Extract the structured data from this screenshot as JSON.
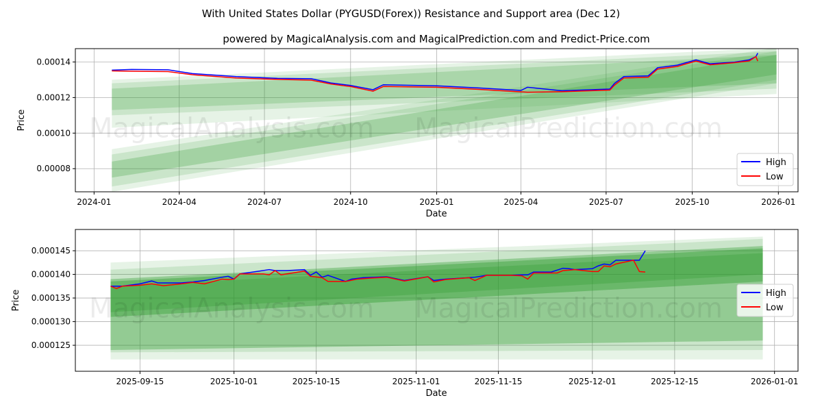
{
  "title": "With United States Dollar (PYGUSD(Forex)) Resistance and Support area (Dec 12)",
  "subtitle": "powered by MagicalAnalysis.com and MagicalPrediction.com and Predict-Price.com",
  "watermarks": [
    "MagicalAnalysis.com",
    "MagicalPrediction.com"
  ],
  "colors": {
    "high": "#0000ff",
    "low": "#ff0000",
    "band": "#2e9a2e"
  },
  "chart_data": [
    {
      "type": "line",
      "xlabel": "Date",
      "ylabel": "Price",
      "xlim": [
        "2023-12-12",
        "2026-01-22"
      ],
      "ylim": [
        6.7e-05,
        0.0001475
      ],
      "xticks": [
        "2024-01",
        "2024-04",
        "2024-07",
        "2024-10",
        "2025-01",
        "2025-04",
        "2025-07",
        "2025-10",
        "2026-01"
      ],
      "xtick_dates": [
        "2024-01-01",
        "2024-04-01",
        "2024-07-01",
        "2024-10-01",
        "2025-01-01",
        "2025-04-01",
        "2025-07-01",
        "2025-10-01",
        "2026-01-01"
      ],
      "yticks": [
        "0.00008",
        "0.00010",
        "0.00012",
        "0.00014"
      ],
      "ytick_values": [
        8e-05,
        0.0001,
        0.00012,
        0.00014
      ],
      "legend": {
        "position": "bottom-right",
        "entries": [
          "High",
          "Low"
        ]
      },
      "band_range": [
        "2024-01-20",
        "2025-12-30"
      ],
      "bands": [
        {
          "start": [
            0.000103,
            0.00013
          ],
          "end": [
            0.000122,
            0.000148
          ],
          "opacity": 0.12
        },
        {
          "start": [
            0.00011,
            0.000128
          ],
          "end": [
            0.000125,
            0.000146
          ],
          "opacity": 0.15
        },
        {
          "start": [
            0.000113,
            0.000125
          ],
          "end": [
            0.000128,
            0.000144
          ],
          "opacity": 0.2
        },
        {
          "start": [
            6.7e-05,
            9.1e-05
          ],
          "end": [
            0.000128,
            0.000148
          ],
          "opacity": 0.12
        },
        {
          "start": [
            7e-05,
            8.8e-05
          ],
          "end": [
            0.00013,
            0.000146
          ],
          "opacity": 0.15
        },
        {
          "start": [
            7.5e-05,
            8.4e-05
          ],
          "end": [
            0.000133,
            0.000144
          ],
          "opacity": 0.25
        }
      ],
      "series": [
        {
          "name": "High",
          "points": [
            [
              "2024-01-20",
              0.0001354
            ],
            [
              "2024-02-10",
              0.0001358
            ],
            [
              "2024-03-20",
              0.0001356
            ],
            [
              "2024-04-15",
              0.0001335
            ],
            [
              "2024-06-01",
              0.0001318
            ],
            [
              "2024-07-15",
              0.0001308
            ],
            [
              "2024-08-20",
              0.0001306
            ],
            [
              "2024-09-10",
              0.0001282
            ],
            [
              "2024-10-01",
              0.0001268
            ],
            [
              "2024-10-25",
              0.0001244
            ],
            [
              "2024-11-05",
              0.0001272
            ],
            [
              "2025-01-01",
              0.0001266
            ],
            [
              "2025-02-15",
              0.0001254
            ],
            [
              "2025-04-01",
              0.000124
            ],
            [
              "2025-04-08",
              0.0001258
            ],
            [
              "2025-05-15",
              0.0001238
            ],
            [
              "2025-07-05",
              0.0001248
            ],
            [
              "2025-07-10",
              0.000128
            ],
            [
              "2025-07-20",
              0.0001318
            ],
            [
              "2025-08-15",
              0.0001322
            ],
            [
              "2025-08-25",
              0.0001368
            ],
            [
              "2025-09-15",
              0.0001382
            ],
            [
              "2025-10-05",
              0.0001412
            ],
            [
              "2025-10-20",
              0.000139
            ],
            [
              "2025-11-15",
              0.0001399
            ],
            [
              "2025-12-01",
              0.0001412
            ],
            [
              "2025-12-08",
              0.000143
            ],
            [
              "2025-12-10",
              0.000145
            ]
          ]
        },
        {
          "name": "Low",
          "points": [
            [
              "2024-01-20",
              0.000135
            ],
            [
              "2024-02-10",
              0.0001348
            ],
            [
              "2024-03-20",
              0.0001346
            ],
            [
              "2024-04-15",
              0.0001328
            ],
            [
              "2024-06-01",
              0.000131
            ],
            [
              "2024-07-15",
              0.0001302
            ],
            [
              "2024-08-20",
              0.0001298
            ],
            [
              "2024-09-10",
              0.0001276
            ],
            [
              "2024-10-01",
              0.0001262
            ],
            [
              "2024-10-25",
              0.0001236
            ],
            [
              "2024-11-05",
              0.0001262
            ],
            [
              "2025-01-01",
              0.0001258
            ],
            [
              "2025-02-15",
              0.0001246
            ],
            [
              "2025-04-01",
              0.0001232
            ],
            [
              "2025-04-08",
              0.000123
            ],
            [
              "2025-05-15",
              0.0001233
            ],
            [
              "2025-07-05",
              0.0001242
            ],
            [
              "2025-07-10",
              0.000127
            ],
            [
              "2025-07-20",
              0.000131
            ],
            [
              "2025-08-15",
              0.0001314
            ],
            [
              "2025-08-25",
              0.000136
            ],
            [
              "2025-09-15",
              0.0001375
            ],
            [
              "2025-10-05",
              0.0001405
            ],
            [
              "2025-10-20",
              0.0001384
            ],
            [
              "2025-11-15",
              0.0001396
            ],
            [
              "2025-12-01",
              0.0001406
            ],
            [
              "2025-12-08",
              0.000143
            ],
            [
              "2025-12-10",
              0.0001405
            ]
          ]
        }
      ]
    },
    {
      "type": "line",
      "xlabel": "Date",
      "ylabel": "Price",
      "xlim": [
        "2025-09-04",
        "2026-01-05"
      ],
      "ylim": [
        0.0001195,
        0.0001495
      ],
      "xticks": [
        "2025-09-15",
        "2025-10-01",
        "2025-10-15",
        "2025-11-01",
        "2025-11-15",
        "2025-12-01",
        "2025-12-15",
        "2026-01-01"
      ],
      "yticks": [
        "0.000125",
        "0.000130",
        "0.000135",
        "0.000140",
        "0.000145"
      ],
      "ytick_values": [
        0.000125,
        0.00013,
        0.000135,
        0.00014,
        0.000145
      ],
      "legend": {
        "position": "center-right",
        "entries": [
          "High",
          "Low"
        ]
      },
      "band_range": [
        "2025-09-10",
        "2025-12-30"
      ],
      "bands": [
        {
          "start": [
            0.000122,
            0.0001425
          ],
          "end": [
            0.000122,
            0.000148
          ],
          "opacity": 0.12
        },
        {
          "start": [
            0.0001235,
            0.000141
          ],
          "end": [
            0.000124,
            0.0001475
          ],
          "opacity": 0.15
        },
        {
          "start": [
            0.000124,
            0.000139
          ],
          "end": [
            0.000126,
            0.000146
          ],
          "opacity": 0.35
        },
        {
          "start": [
            0.000131,
            0.0001385
          ],
          "end": [
            0.0001385,
            0.0001455
          ],
          "opacity": 0.4
        },
        {
          "start": [
            0.000132,
            0.0001375
          ],
          "end": [
            0.00014,
            0.0001445
          ],
          "opacity": 0.3
        }
      ],
      "series": [
        {
          "name": "High",
          "points": [
            [
              "2025-09-10",
              0.0001375
            ],
            [
              "2025-09-12",
              0.0001375
            ],
            [
              "2025-09-15",
              0.000138
            ],
            [
              "2025-09-17",
              0.0001386
            ],
            [
              "2025-09-18",
              0.0001382
            ],
            [
              "2025-09-22",
              0.0001382
            ],
            [
              "2025-09-24",
              0.0001384
            ],
            [
              "2025-09-26",
              0.0001387
            ],
            [
              "2025-09-29",
              0.0001394
            ],
            [
              "2025-09-30",
              0.0001396
            ],
            [
              "2025-10-01",
              0.000139
            ],
            [
              "2025-10-02",
              0.0001401
            ],
            [
              "2025-10-07",
              0.000141
            ],
            [
              "2025-10-08",
              0.0001408
            ],
            [
              "2025-10-10",
              0.0001408
            ],
            [
              "2025-10-13",
              0.000141
            ],
            [
              "2025-10-14",
              0.0001398
            ],
            [
              "2025-10-15",
              0.0001405
            ],
            [
              "2025-10-16",
              0.0001394
            ],
            [
              "2025-10-17",
              0.0001398
            ],
            [
              "2025-10-20",
              0.0001385
            ],
            [
              "2025-10-21",
              0.000139
            ],
            [
              "2025-10-23",
              0.0001393
            ],
            [
              "2025-10-27",
              0.0001395
            ],
            [
              "2025-10-30",
              0.0001387
            ],
            [
              "2025-11-03",
              0.0001395
            ],
            [
              "2025-11-04",
              0.0001387
            ],
            [
              "2025-11-06",
              0.000139
            ],
            [
              "2025-11-10",
              0.0001393
            ],
            [
              "2025-11-11",
              0.0001394
            ],
            [
              "2025-11-13",
              0.0001398
            ],
            [
              "2025-11-17",
              0.0001398
            ],
            [
              "2025-11-19",
              0.0001399
            ],
            [
              "2025-11-20",
              0.0001399
            ],
            [
              "2025-11-21",
              0.0001405
            ],
            [
              "2025-11-24",
              0.0001405
            ],
            [
              "2025-11-26",
              0.0001413
            ],
            [
              "2025-11-27",
              0.0001412
            ],
            [
              "2025-11-28",
              0.000141
            ],
            [
              "2025-12-01",
              0.0001412
            ],
            [
              "2025-12-02",
              0.0001418
            ],
            [
              "2025-12-03",
              0.0001422
            ],
            [
              "2025-12-04",
              0.000142
            ],
            [
              "2025-12-05",
              0.000143
            ],
            [
              "2025-12-08",
              0.000143
            ],
            [
              "2025-12-09",
              0.000143
            ],
            [
              "2025-12-10",
              0.000145
            ]
          ]
        },
        {
          "name": "Low",
          "points": [
            [
              "2025-09-10",
              0.0001375
            ],
            [
              "2025-09-11",
              0.000137
            ],
            [
              "2025-09-12",
              0.0001375
            ],
            [
              "2025-09-15",
              0.0001377
            ],
            [
              "2025-09-17",
              0.000138
            ],
            [
              "2025-09-19",
              0.0001376
            ],
            [
              "2025-09-22",
              0.000138
            ],
            [
              "2025-09-24",
              0.0001383
            ],
            [
              "2025-09-26",
              0.000138
            ],
            [
              "2025-09-29",
              0.000139
            ],
            [
              "2025-09-30",
              0.0001389
            ],
            [
              "2025-10-01",
              0.000139
            ],
            [
              "2025-10-02",
              0.0001401
            ],
            [
              "2025-10-06",
              0.0001401
            ],
            [
              "2025-10-07",
              0.0001399
            ],
            [
              "2025-10-08",
              0.0001408
            ],
            [
              "2025-10-09",
              0.0001399
            ],
            [
              "2025-10-13",
              0.0001407
            ],
            [
              "2025-10-14",
              0.0001396
            ],
            [
              "2025-10-16",
              0.0001393
            ],
            [
              "2025-10-17",
              0.0001385
            ],
            [
              "2025-10-20",
              0.0001385
            ],
            [
              "2025-10-22",
              0.000139
            ],
            [
              "2025-10-24",
              0.0001392
            ],
            [
              "2025-10-27",
              0.0001394
            ],
            [
              "2025-10-30",
              0.0001386
            ],
            [
              "2025-11-03",
              0.0001395
            ],
            [
              "2025-11-04",
              0.0001384
            ],
            [
              "2025-11-06",
              0.0001389
            ],
            [
              "2025-11-10",
              0.0001393
            ],
            [
              "2025-11-11",
              0.0001387
            ],
            [
              "2025-11-13",
              0.0001398
            ],
            [
              "2025-11-17",
              0.0001398
            ],
            [
              "2025-11-19",
              0.0001397
            ],
            [
              "2025-11-20",
              0.000139
            ],
            [
              "2025-11-21",
              0.0001403
            ],
            [
              "2025-11-25",
              0.0001403
            ],
            [
              "2025-11-26",
              0.0001408
            ],
            [
              "2025-11-27",
              0.0001409
            ],
            [
              "2025-11-28",
              0.000141
            ],
            [
              "2025-12-01",
              0.0001406
            ],
            [
              "2025-12-02",
              0.0001406
            ],
            [
              "2025-12-03",
              0.0001418
            ],
            [
              "2025-12-04",
              0.0001416
            ],
            [
              "2025-12-05",
              0.0001422
            ],
            [
              "2025-12-08",
              0.000143
            ],
            [
              "2025-12-09",
              0.0001406
            ],
            [
              "2025-12-10",
              0.0001405
            ]
          ]
        }
      ]
    }
  ]
}
